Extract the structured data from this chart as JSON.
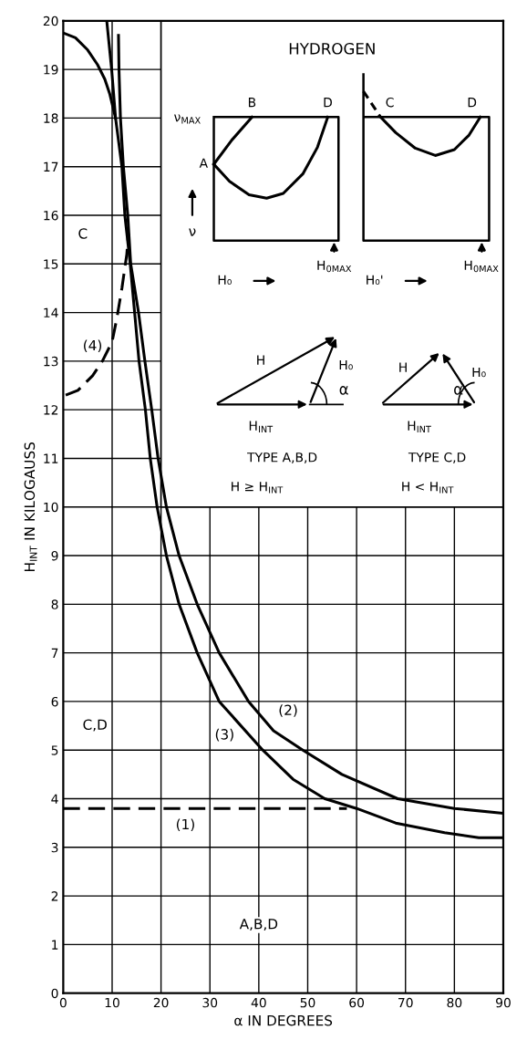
{
  "chart_data": {
    "type": "line",
    "xlabel": "α IN DEGREES",
    "ylabel": "H$_{INT}$ IN KILOGAUSS",
    "xlim": [
      0,
      90
    ],
    "ylim": [
      0,
      20
    ],
    "xticks": [
      0,
      10,
      20,
      30,
      40,
      50,
      60,
      70,
      80,
      90
    ],
    "yticks": [
      0,
      1,
      2,
      3,
      4,
      5,
      6,
      7,
      8,
      9,
      10,
      11,
      12,
      13,
      14,
      15,
      16,
      17,
      18,
      19,
      20
    ],
    "grid": true,
    "series": [
      {
        "color": "#000000",
        "line_style": "dashed",
        "x": [
          0,
          58
        ],
        "values": [
          3.8,
          3.8
        ]
      },
      {
        "color": "#000000",
        "line_style": "solid",
        "x": [
          11.3,
          11.4,
          11.7,
          12.3,
          13.2,
          13.8,
          15.4,
          16.7,
          18.1,
          19.4,
          21.1,
          23.7,
          27.4,
          31.9,
          37.9,
          43,
          49,
          57,
          68.4,
          80,
          90
        ],
        "values": [
          19.7,
          19,
          18,
          17,
          16,
          15,
          14,
          13,
          12,
          11,
          10,
          9,
          8,
          7,
          6,
          5.4,
          5,
          4.5,
          4,
          3.8,
          3.7
        ]
      },
      {
        "color": "#000000",
        "line_style": "solid",
        "x": [
          8.9,
          9.9,
          10.7,
          12,
          12.6,
          13.7,
          14.6,
          15.5,
          16.8,
          17.8,
          19.2,
          21.1,
          23.7,
          27.4,
          31.9,
          40.8,
          47,
          53.5,
          60,
          68,
          78,
          85,
          90
        ],
        "values": [
          20,
          19,
          18,
          17,
          16,
          15,
          14,
          13,
          12,
          11,
          10,
          9,
          8,
          7,
          6,
          5,
          4.4,
          4,
          3.8,
          3.5,
          3.3,
          3.2,
          3.2
        ]
      },
      {
        "color": "#000000",
        "line_style": "dashed",
        "x": [
          0.5,
          3,
          6,
          8,
          10,
          11,
          12,
          13,
          13.3
        ],
        "values": [
          12.3,
          12.4,
          12.7,
          13,
          13.4,
          13.9,
          14.5,
          15.2,
          15.6
        ]
      },
      {
        "color": "#000000",
        "line_style": "solid",
        "x": [
          0,
          2.5,
          5,
          7,
          8.5,
          9.5,
          10.7
        ],
        "values": [
          19.75,
          19.65,
          19.4,
          19.1,
          18.8,
          18.5,
          18
        ]
      }
    ],
    "annotations": [
      "C",
      "(4)",
      "C,D",
      "(3)",
      "(2)",
      "(1)",
      "A,B,D",
      "HYDROGEN",
      "ν$_{MAX}$",
      "B",
      "D",
      "A",
      "ν",
      "H$_{0MAX}$",
      "H₀",
      "C",
      "D",
      "H$_{0MAX}$",
      "H₀'",
      "H",
      "H₀",
      "α",
      "H$_{INT}$",
      "TYPE A,B,D",
      "H ≥ H$_{INT}$",
      "H",
      "H₀",
      "α",
      "H$_{INT}$",
      "TYPE C,D",
      "H < H$_{INT}$"
    ]
  }
}
